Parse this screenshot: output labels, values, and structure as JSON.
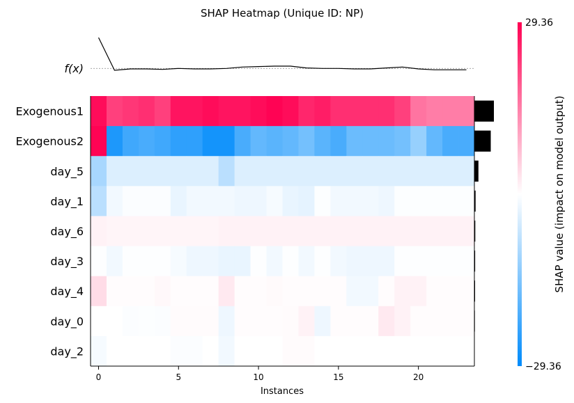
{
  "chart_data": {
    "type": "heatmap",
    "title": "SHAP Heatmap (Unique ID: NP)",
    "xlabel": "Instances",
    "fx_label": "f(x)",
    "colorbar_label": "SHAP value (impact on model output)",
    "colorbar_max_label": "29.36",
    "colorbar_min_label": "−29.36",
    "vlim": [
      -29.36,
      29.36
    ],
    "x_ticks": [
      0,
      5,
      10,
      15,
      20
    ],
    "n_instances": 24,
    "features": [
      "Exogenous1",
      "Exogenous2",
      "day_5",
      "day_1",
      "day_6",
      "day_3",
      "day_4",
      "day_0",
      "day_2"
    ],
    "values": [
      [
        28,
        22,
        23,
        24,
        22,
        27,
        27,
        28,
        27,
        27,
        28,
        29,
        28,
        25,
        26,
        24,
        24,
        24,
        24,
        22,
        16,
        15,
        15,
        15
      ],
      [
        29,
        -26,
        -22,
        -21,
        -22,
        -24,
        -24,
        -27,
        -27,
        -21,
        -18,
        -19,
        -18,
        -16,
        -19,
        -21,
        -17,
        -17,
        -17,
        -16,
        -12,
        -18,
        -21,
        -21
      ],
      [
        -10,
        -4,
        -4,
        -4,
        -4,
        -4,
        -4,
        -4,
        -8,
        -4,
        -4,
        -4,
        -4,
        -4,
        -4,
        -4,
        -4,
        -4,
        -4,
        -4,
        -4,
        -4,
        -4,
        -4
      ],
      [
        -8,
        -1.5,
        -0.5,
        -0.5,
        -0.5,
        -2.5,
        -1.5,
        -1.5,
        -1.5,
        -2,
        -2,
        -1,
        -2.5,
        -3,
        -0.3,
        -1.5,
        -1.5,
        -1.5,
        -2,
        -0.3,
        -0.3,
        -0.3,
        -0.3,
        -0.3
      ],
      [
        1.5,
        1.2,
        1.2,
        1.2,
        1.2,
        1.2,
        1.2,
        1.2,
        1.5,
        1.5,
        1.5,
        1.5,
        1.5,
        1.5,
        1.5,
        1.5,
        1.5,
        1.5,
        1.5,
        1.5,
        1.5,
        1.5,
        1.5,
        1.5
      ],
      [
        -0.2,
        -1.5,
        -0.2,
        -0.2,
        -0.2,
        -1,
        -2,
        -2,
        -2.5,
        -2.5,
        -0.2,
        -1.5,
        -0.2,
        -1.5,
        -0.2,
        -1.5,
        -2,
        -2,
        -2,
        -0.2,
        -0.2,
        -0.2,
        -0.2,
        -0.2
      ],
      [
        4,
        0.3,
        0.3,
        0.3,
        0.8,
        0.3,
        0.3,
        0.3,
        2.5,
        0.3,
        0.3,
        0.6,
        0.3,
        0.3,
        0.3,
        0.3,
        -1.5,
        -1.5,
        0.3,
        1.5,
        1.5,
        0.3,
        0.3,
        0.3
      ],
      [
        0,
        0,
        -0.5,
        -0.3,
        -0.5,
        0.5,
        0.5,
        0.5,
        -2,
        0.3,
        0.3,
        0.3,
        0.5,
        1.5,
        -2,
        0.3,
        0.3,
        0.3,
        2.5,
        1.5,
        0.3,
        0.3,
        0.3,
        0.3
      ],
      [
        -1,
        0,
        0,
        0,
        0,
        -0.5,
        -0.5,
        0,
        -1.5,
        0,
        0,
        0,
        0.5,
        0.5,
        0,
        0,
        0,
        0,
        0,
        0,
        0,
        0,
        0,
        0
      ]
    ],
    "fx_values": [
      3.5,
      0,
      0.15,
      0.15,
      0.1,
      0.2,
      0.15,
      0.15,
      0.2,
      0.35,
      0.4,
      0.45,
      0.45,
      0.25,
      0.2,
      0.2,
      0.15,
      0.15,
      0.25,
      0.35,
      0.15,
      0.05,
      0.05,
      0.05
    ],
    "fx_baseline": 0.2,
    "feature_importance": [
      28,
      23.5,
      5.8,
      1.7,
      1.3,
      1.1,
      1.0,
      0.7,
      0.4
    ]
  }
}
